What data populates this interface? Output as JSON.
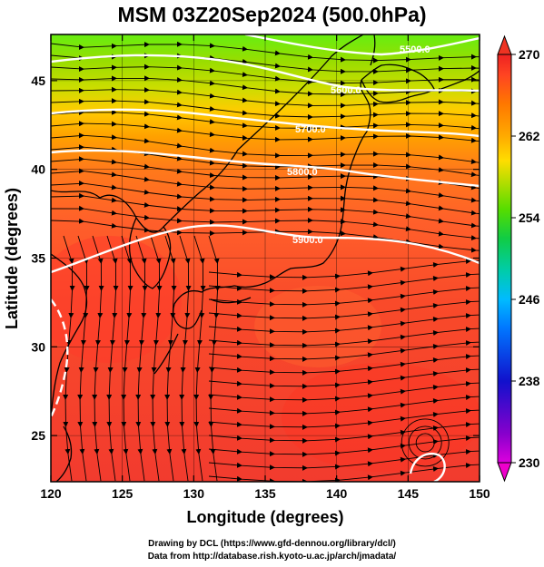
{
  "title": "MSM 03Z20Sep2024 (500.0hPa)",
  "map": {
    "xlabel": "Longitude (degrees)",
    "ylabel": "Latitude  (degrees)",
    "xlim": [
      120,
      150
    ],
    "ylim": [
      22.4,
      47.6
    ],
    "xticks": [
      120,
      125,
      130,
      135,
      140,
      145,
      150
    ],
    "yticks": [
      25,
      30,
      35,
      40,
      45
    ],
    "field": "temperature (K), shaded",
    "contours": [
      {
        "label": "5900.0",
        "lat_west": 34.8,
        "lat_east": 36.4
      },
      {
        "label": "5800.0",
        "lat_west": 41.3,
        "lat_east": 39.8
      },
      {
        "label": "5700.0",
        "lat_west": 43.3,
        "lat_east": 42.6
      },
      {
        "label": "5600.0",
        "lat_west": 46.0,
        "lat_east": 45.4
      },
      {
        "label": "5500.0",
        "lat_west": 47.6,
        "lat_east": 47.2
      }
    ],
    "low_center": {
      "lon": 146.2,
      "lat": 24.6
    }
  },
  "colorbar": {
    "min": 230,
    "max": 270,
    "labels": [
      "270",
      "262",
      "254",
      "246",
      "238",
      "230"
    ],
    "stops": [
      "#dd00dd",
      "#8800cc",
      "#1111cc",
      "#0077ff",
      "#00bbff",
      "#00ccaa",
      "#11cc44",
      "#55dd00",
      "#aadd00",
      "#ffdd00",
      "#ffaa00",
      "#ff7700",
      "#ff4422",
      "#ee2222"
    ]
  },
  "credits": {
    "line1": "Drawing by DCL (https://www.gfd-dennou.org/library/dcl/)",
    "line2": "Data from http://database.rish.kyoto-u.ac.jp/arch/jmadata/"
  }
}
